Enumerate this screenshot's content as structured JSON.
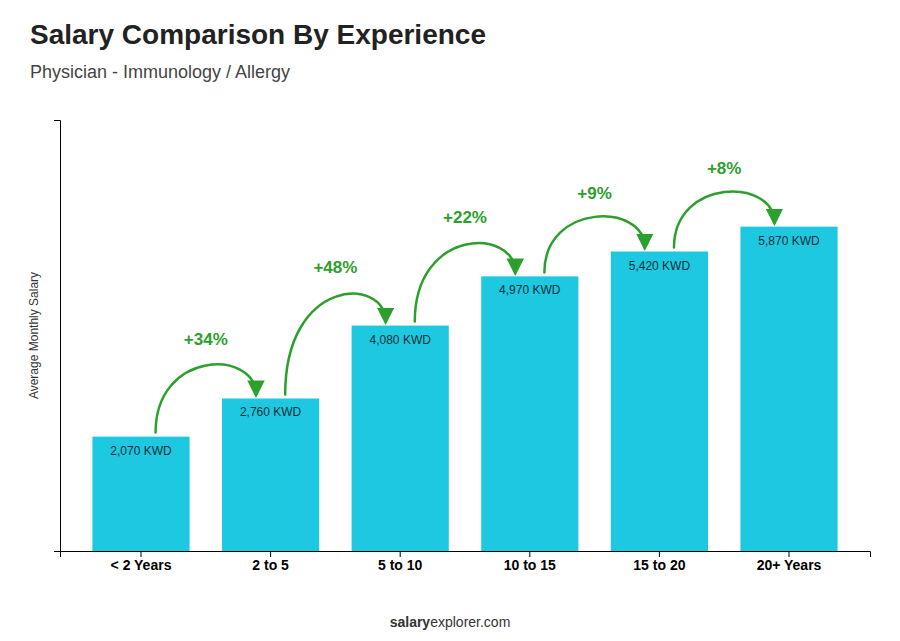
{
  "chart_data": {
    "type": "bar",
    "title": "Salary Comparison By Experience",
    "subtitle": "Physician - Immunology / Allergy",
    "y_label": "Average Monthly Salary",
    "categories": [
      "< 2 Years",
      "2 to 5",
      "5 to 10",
      "10 to 15",
      "15 to 20",
      "20+ Years"
    ],
    "values": [
      2070,
      2760,
      4080,
      4970,
      5420,
      5870
    ],
    "value_labels": [
      "2,070 KWD",
      "2,760 KWD",
      "4,080 KWD",
      "4,970 KWD",
      "5,420 KWD",
      "5,870 KWD"
    ],
    "data_labels": true,
    "annotations": [
      "+34%",
      "+48%",
      "+22%",
      "+9%",
      "+8%"
    ],
    "footer": [
      "salary",
      "explorer.com"
    ],
    "color": "#1ec8e0",
    "ylim": [
      0,
      7800
    ],
    "tick_labels": "x"
  }
}
